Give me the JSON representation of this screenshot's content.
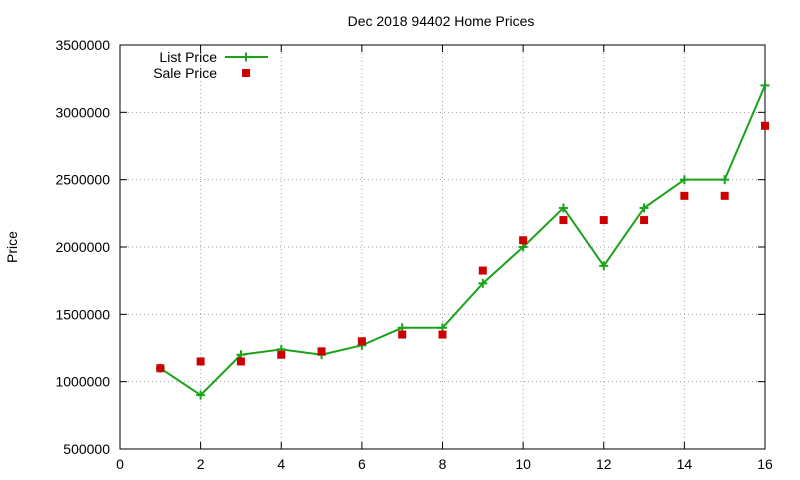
{
  "chart_data": {
    "type": "line",
    "title": "Dec 2018 94402 Home Prices",
    "xlabel": "",
    "ylabel": "Price",
    "xlim": [
      0,
      16
    ],
    "ylim": [
      500000,
      3500000
    ],
    "x_ticks": [
      "0",
      "2",
      "4",
      "6",
      "8",
      "10",
      "12",
      "14",
      "16"
    ],
    "y_ticks": [
      "500000",
      "1000000",
      "1500000",
      "2000000",
      "2500000",
      "3000000",
      "3500000"
    ],
    "grid": true,
    "legend_position": "top-left",
    "series": [
      {
        "name": "List Price",
        "style": "line-points",
        "marker": "plus",
        "color": "#1aa31a",
        "x": [
          1,
          2,
          3,
          4,
          5,
          6,
          7,
          8,
          9,
          10,
          11,
          12,
          13,
          14,
          15,
          16
        ],
        "values": [
          1100000,
          900000,
          1200000,
          1240000,
          1200000,
          1270000,
          1400000,
          1400000,
          1730000,
          2000000,
          2290000,
          1860000,
          2290000,
          2500000,
          2500000,
          3200000
        ]
      },
      {
        "name": "Sale Price",
        "style": "points",
        "marker": "square",
        "color": "#cc0000",
        "x": [
          1,
          2,
          3,
          4,
          5,
          6,
          7,
          8,
          9,
          10,
          11,
          12,
          13,
          14,
          15,
          16
        ],
        "values": [
          1100000,
          1150000,
          1150000,
          1200000,
          1225000,
          1300000,
          1350000,
          1350000,
          1825000,
          2050000,
          2200000,
          2200000,
          2200000,
          2380000,
          2380000,
          2900000
        ]
      }
    ]
  }
}
